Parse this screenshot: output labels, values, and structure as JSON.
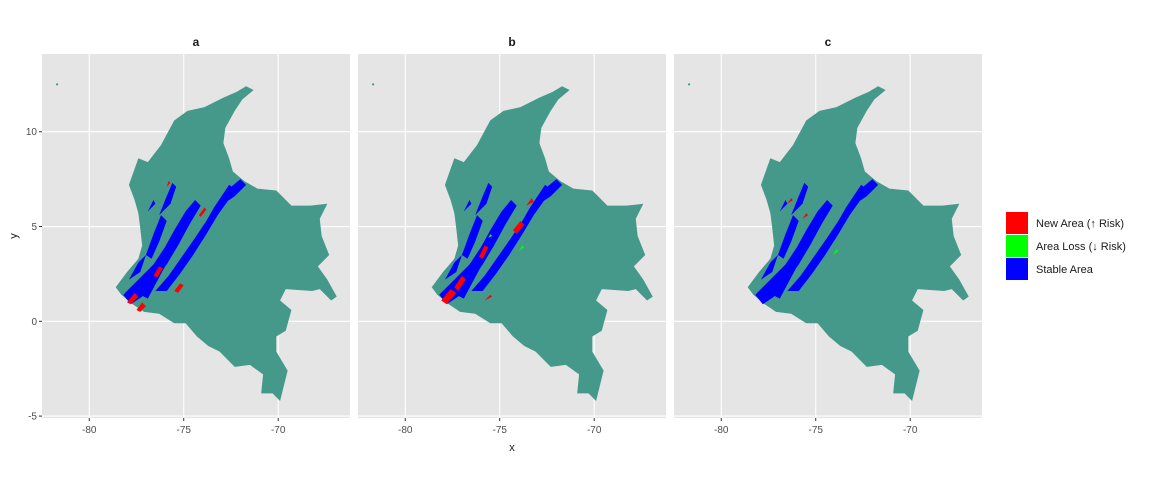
{
  "chart_data": {
    "type": "map",
    "panels": [
      "a",
      "b",
      "c"
    ],
    "xlabel": "x",
    "ylabel": "y",
    "x_ticks": [
      -80,
      -75,
      -70
    ],
    "y_ticks": [
      -5,
      0,
      5,
      10
    ],
    "xlim": [
      -82.5,
      -66.2
    ],
    "ylim": [
      -5.1,
      14.1
    ],
    "grid": true,
    "legend_position": "right",
    "legend": [
      {
        "label": "New Area (↑ Risk)",
        "color": "#ff0000"
      },
      {
        "label": "Area Loss (↓ Risk)",
        "color": "#00ff00"
      },
      {
        "label": "Stable Area",
        "color": "#0000ff"
      }
    ],
    "base_fill": "#45998a",
    "panel_bg": "#e5e5e5",
    "grid_color": "#ffffff"
  }
}
